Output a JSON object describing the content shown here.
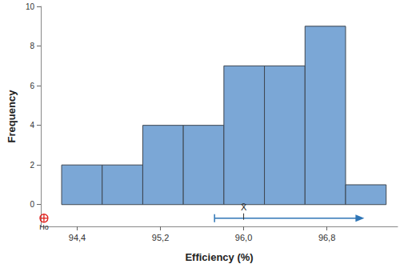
{
  "chart_data": {
    "type": "histogram",
    "x_label": "Efficiency (%)",
    "y_label": "Frequency",
    "bins": [
      94.25,
      94.64,
      95.03,
      95.42,
      95.81,
      96.2,
      96.59,
      96.98,
      97.37
    ],
    "counts": [
      2,
      2,
      4,
      4,
      7,
      7,
      9,
      1
    ],
    "color": "#7ba7d6",
    "xlim": [
      94.05,
      97.48
    ],
    "xticks": [
      {
        "value": 94.4,
        "label": "94,4"
      },
      {
        "value": 95.2,
        "label": "95,2"
      },
      {
        "value": 96.0,
        "label": "96,0"
      },
      {
        "value": 96.8,
        "label": "96,8"
      }
    ],
    "ylim": [
      -1.1,
      10
    ],
    "yticks": [
      0,
      2,
      4,
      6,
      8,
      10
    ],
    "grid": false,
    "mean": {
      "value": 96.0,
      "label": "X̄"
    },
    "ci_lower": 95.72,
    "ci_arrow_end": 97.16,
    "h0": {
      "value": 94.08,
      "label": "Ho",
      "color": "#e0201b"
    },
    "ci_color": "#2e75b6"
  }
}
